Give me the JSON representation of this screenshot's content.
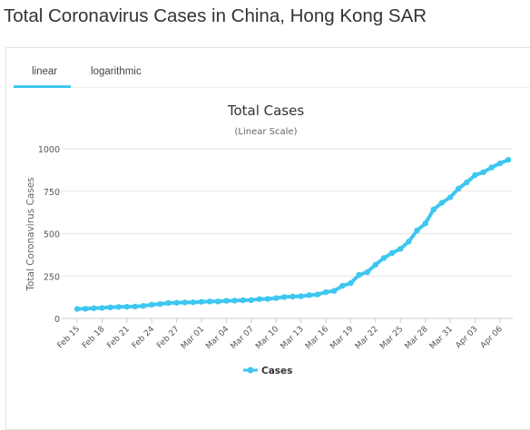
{
  "page": {
    "title": "Total Coronavirus Cases in China, Hong Kong SAR"
  },
  "tabs": [
    {
      "label": "linear",
      "active": true
    },
    {
      "label": "logarithmic",
      "active": false
    }
  ],
  "colors": {
    "series": "#3ec7f0",
    "active_tab_underline": "#3ec7f0"
  },
  "chart_data": {
    "type": "line",
    "title": "Total Cases",
    "subtitle": "(Linear Scale)",
    "ylabel": "Total Coronavirus Cases",
    "xlabel": "",
    "ylim": [
      0,
      1000
    ],
    "yticks": [
      0,
      250,
      500,
      750,
      1000
    ],
    "grid": true,
    "legend": "bottom-center",
    "x": [
      "Feb 15",
      "Feb 16",
      "Feb 17",
      "Feb 18",
      "Feb 19",
      "Feb 20",
      "Feb 21",
      "Feb 22",
      "Feb 23",
      "Feb 24",
      "Feb 25",
      "Feb 26",
      "Feb 27",
      "Feb 28",
      "Feb 29",
      "Mar 01",
      "Mar 02",
      "Mar 03",
      "Mar 04",
      "Mar 05",
      "Mar 06",
      "Mar 07",
      "Mar 08",
      "Mar 09",
      "Mar 10",
      "Mar 11",
      "Mar 12",
      "Mar 13",
      "Mar 14",
      "Mar 15",
      "Mar 16",
      "Mar 17",
      "Mar 18",
      "Mar 19",
      "Mar 20",
      "Mar 21",
      "Mar 22",
      "Mar 23",
      "Mar 24",
      "Mar 25",
      "Mar 26",
      "Mar 27",
      "Mar 28",
      "Mar 29",
      "Mar 30",
      "Mar 31",
      "Apr 01",
      "Apr 02",
      "Apr 03",
      "Apr 04",
      "Apr 05",
      "Apr 06",
      "Apr 07"
    ],
    "x_tick_labels": [
      "Feb 15",
      "Feb 18",
      "Feb 21",
      "Feb 24",
      "Feb 27",
      "Mar 01",
      "Mar 04",
      "Mar 07",
      "Mar 10",
      "Mar 13",
      "Mar 16",
      "Mar 19",
      "Mar 22",
      "Mar 25",
      "Mar 28",
      "Mar 31",
      "Apr 03",
      "Apr 06"
    ],
    "series": [
      {
        "name": "Cases",
        "color": "#3ec7f0",
        "values": [
          56,
          57,
          60,
          62,
          65,
          68,
          69,
          70,
          74,
          81,
          85,
          91,
          92,
          94,
          95,
          98,
          100,
          100,
          104,
          105,
          107,
          108,
          114,
          115,
          120,
          126,
          129,
          131,
          137,
          141,
          155,
          162,
          192,
          208,
          256,
          273,
          317,
          356,
          386,
          410,
          453,
          518,
          560,
          642,
          682,
          714,
          765,
          802,
          845,
          862,
          890,
          914,
          935
        ]
      }
    ]
  }
}
